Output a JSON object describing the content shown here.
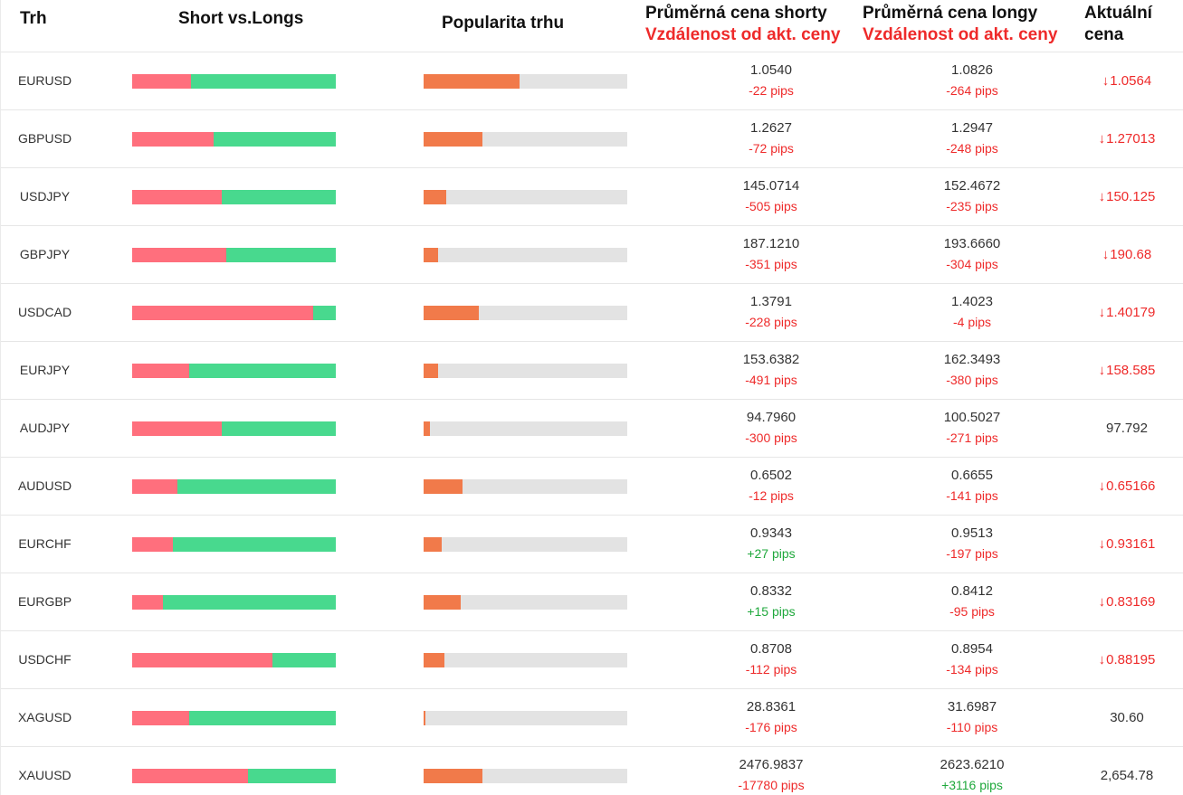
{
  "header": {
    "market": "Trh",
    "short_vs_longs": "Short vs.Longs",
    "popularity": "Popularita trhu",
    "avg_short": "Průměrná cena shorty",
    "avg_short_sub": "Vzdálenost od akt. ceny",
    "avg_long": "Průměrná cena longy",
    "avg_long_sub": "Vzdálenost od akt. ceny",
    "current_line1": "Aktuální",
    "current_line2": "cena"
  },
  "colors": {
    "short": "#ff6f7d",
    "long": "#48d98e",
    "popularity": "#f17a4a",
    "negative": "#ee2a2a",
    "positive": "#1fa83c"
  },
  "rows": [
    {
      "symbol": "EURUSD",
      "short_share": 0.29,
      "popularity": 0.47,
      "avg_short": "1.0540",
      "short_pips": "-22 pips",
      "avg_long": "1.0826",
      "long_pips": "-264 pips",
      "current": "1.0564",
      "trend": "down",
      "trend_icon": "arrow-down-icon"
    },
    {
      "symbol": "GBPUSD",
      "short_share": 0.4,
      "popularity": 0.29,
      "avg_short": "1.2627",
      "short_pips": "-72 pips",
      "avg_long": "1.2947",
      "long_pips": "-248 pips",
      "current": "1.27013",
      "trend": "down",
      "trend_icon": "arrow-down-icon"
    },
    {
      "symbol": "USDJPY",
      "short_share": 0.44,
      "popularity": 0.11,
      "avg_short": "145.0714",
      "short_pips": "-505 pips",
      "avg_long": "152.4672",
      "long_pips": "-235 pips",
      "current": "150.125",
      "trend": "down",
      "trend_icon": "arrow-down-icon"
    },
    {
      "symbol": "GBPJPY",
      "short_share": 0.46,
      "popularity": 0.07,
      "avg_short": "187.1210",
      "short_pips": "-351 pips",
      "avg_long": "193.6660",
      "long_pips": "-304 pips",
      "current": "190.68",
      "trend": "down",
      "trend_icon": "arrow-down-icon"
    },
    {
      "symbol": "USDCAD",
      "short_share": 0.89,
      "popularity": 0.27,
      "avg_short": "1.3791",
      "short_pips": "-228 pips",
      "avg_long": "1.4023",
      "long_pips": "-4 pips",
      "current": "1.40179",
      "trend": "down",
      "trend_icon": "arrow-down-icon"
    },
    {
      "symbol": "EURJPY",
      "short_share": 0.28,
      "popularity": 0.07,
      "avg_short": "153.6382",
      "short_pips": "-491 pips",
      "avg_long": "162.3493",
      "long_pips": "-380 pips",
      "current": "158.585",
      "trend": "down",
      "trend_icon": "arrow-down-icon"
    },
    {
      "symbol": "AUDJPY",
      "short_share": 0.44,
      "popularity": 0.03,
      "avg_short": "94.7960",
      "short_pips": "-300 pips",
      "avg_long": "100.5027",
      "long_pips": "-271 pips",
      "current": "97.792",
      "trend": "flat",
      "trend_icon": ""
    },
    {
      "symbol": "AUDUSD",
      "short_share": 0.22,
      "popularity": 0.19,
      "avg_short": "0.6502",
      "short_pips": "-12 pips",
      "avg_long": "0.6655",
      "long_pips": "-141 pips",
      "current": "0.65166",
      "trend": "down",
      "trend_icon": "arrow-down-icon"
    },
    {
      "symbol": "EURCHF",
      "short_share": 0.2,
      "popularity": 0.09,
      "avg_short": "0.9343",
      "short_pips": "+27 pips",
      "avg_long": "0.9513",
      "long_pips": "-197 pips",
      "current": "0.93161",
      "trend": "down",
      "trend_icon": "arrow-down-icon"
    },
    {
      "symbol": "EURGBP",
      "short_share": 0.15,
      "popularity": 0.18,
      "avg_short": "0.8332",
      "short_pips": "+15 pips",
      "avg_long": "0.8412",
      "long_pips": "-95 pips",
      "current": "0.83169",
      "trend": "down",
      "trend_icon": "arrow-down-icon"
    },
    {
      "symbol": "USDCHF",
      "short_share": 0.69,
      "popularity": 0.1,
      "avg_short": "0.8708",
      "short_pips": "-112 pips",
      "avg_long": "0.8954",
      "long_pips": "-134 pips",
      "current": "0.88195",
      "trend": "down",
      "trend_icon": "arrow-down-icon"
    },
    {
      "symbol": "XAGUSD",
      "short_share": 0.28,
      "popularity": 0.01,
      "avg_short": "28.8361",
      "short_pips": "-176 pips",
      "avg_long": "31.6987",
      "long_pips": "-110 pips",
      "current": "30.60",
      "trend": "flat",
      "trend_icon": ""
    },
    {
      "symbol": "XAUUSD",
      "short_share": 0.57,
      "popularity": 0.29,
      "avg_short": "2476.9837",
      "short_pips": "-17780 pips",
      "avg_long": "2623.6210",
      "long_pips": "+3116 pips",
      "current": "2,654.78",
      "trend": "flat",
      "trend_icon": ""
    }
  ]
}
